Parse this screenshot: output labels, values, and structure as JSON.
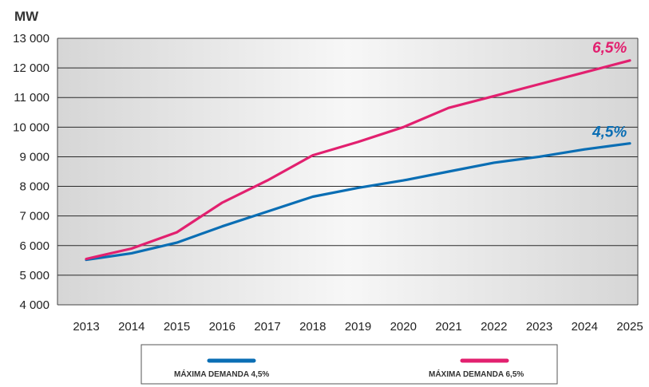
{
  "chart_data": {
    "type": "line",
    "ylabel": "MW",
    "ylim": [
      4000,
      13000
    ],
    "yticks": [
      4000,
      5000,
      6000,
      7000,
      8000,
      9000,
      10000,
      11000,
      12000,
      13000
    ],
    "ytick_labels": [
      "4 000",
      "5 000",
      "6 000",
      "7 000",
      "8 000",
      "9 000",
      "10 000",
      "11 000",
      "12 000",
      "13 000"
    ],
    "categories": [
      "2013",
      "2014",
      "2015",
      "2016",
      "2017",
      "2018",
      "2019",
      "2020",
      "2021",
      "2022",
      "2023",
      "2024",
      "2025"
    ],
    "grid": true,
    "legend_position": "bottom",
    "series": [
      {
        "name": "MÁXIMA DEMANDA 4,5%",
        "end_label": "4,5%",
        "color": "#0a6eb4",
        "values": [
          5520,
          5740,
          6100,
          6650,
          7150,
          7650,
          7950,
          8200,
          8500,
          8800,
          9000,
          9250,
          9450
        ]
      },
      {
        "name": "MÁXIMA DEMANDA 6,5%",
        "end_label": "6,5%",
        "color": "#e2206f",
        "values": [
          5550,
          5900,
          6450,
          7450,
          8200,
          9050,
          9500,
          10000,
          10650,
          11050,
          11450,
          11850,
          12250
        ]
      }
    ]
  }
}
